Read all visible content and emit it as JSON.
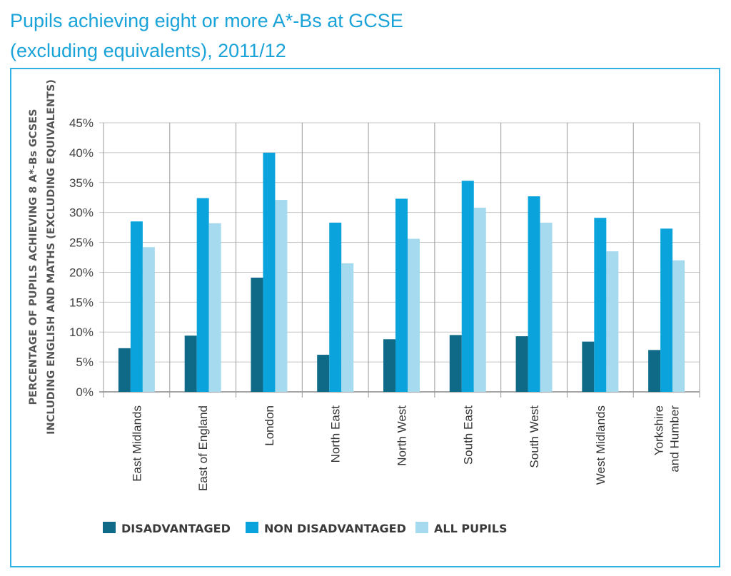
{
  "chart_data": {
    "type": "bar",
    "title": [
      "Pupils achieving eight or more A*-Bs at GCSE",
      "(excluding equivalents), 2011/12"
    ],
    "ylabel": [
      "PERCENTAGE OF PUPILS ACHIEVING 8 A*-Bs GCSES",
      "INCLUDING ENGLISH AND MATHS (EXCLUDING EQUIVALENTS)"
    ],
    "xlabel": "",
    "ylim": [
      0,
      45
    ],
    "yticks": [
      0,
      5,
      10,
      15,
      20,
      25,
      30,
      35,
      40,
      45
    ],
    "ytick_suffix": "%",
    "categories": [
      [
        "East Midlands"
      ],
      [
        "East of England"
      ],
      [
        "London"
      ],
      [
        "North East"
      ],
      [
        "North West"
      ],
      [
        "South East"
      ],
      [
        "South West"
      ],
      [
        "West Midlands"
      ],
      [
        "Yorkshire",
        "and Humber"
      ]
    ],
    "series": [
      {
        "name": "DISADVANTAGED",
        "color": "#0e6a87",
        "values": [
          7.3,
          9.4,
          19.1,
          6.2,
          8.8,
          9.5,
          9.3,
          8.4,
          7.0
        ]
      },
      {
        "name": "NON DISADVANTAGED",
        "color": "#0aa3dc",
        "values": [
          28.5,
          32.4,
          40.0,
          28.3,
          32.3,
          35.3,
          32.7,
          29.1,
          27.3
        ]
      },
      {
        "name": "ALL PUPILS",
        "color": "#a6daee",
        "values": [
          24.2,
          28.2,
          32.1,
          21.5,
          25.6,
          30.8,
          28.3,
          23.5,
          22.0
        ]
      }
    ],
    "grid": true,
    "legend_position": "bottom"
  }
}
